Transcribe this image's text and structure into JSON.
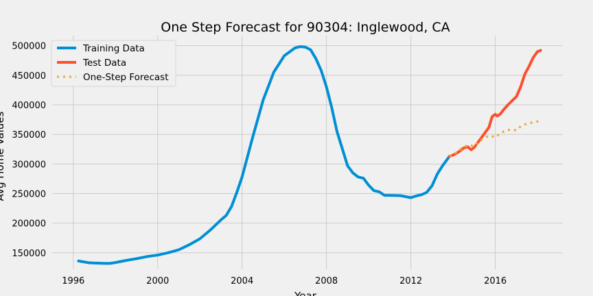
{
  "chart_data": {
    "type": "line",
    "title": "One Step Forecast for 90304: Inglewood, CA",
    "xlabel": "Year",
    "ylabel": "Avg Home Values",
    "xlim": [
      1995.0,
      2019.2
    ],
    "ylim": [
      122000,
      517000
    ],
    "xticks": [
      1996,
      2000,
      2004,
      2008,
      2012,
      2016
    ],
    "yticks": [
      150000,
      200000,
      250000,
      300000,
      350000,
      400000,
      450000,
      500000
    ],
    "grid": true,
    "legend_position": "top-left",
    "colors": {
      "background": "#f0f0f0",
      "grid": "#cbcbcb",
      "training": "#008fd5",
      "test": "#fc4f30",
      "forecast": "#e5ae38"
    },
    "series": [
      {
        "name": "Training Data",
        "style": "solid",
        "x": [
          1996.25,
          1996.5,
          1996.75,
          1997.0,
          1997.5,
          1997.75,
          1998.0,
          1998.5,
          1999.0,
          1999.5,
          2000.0,
          2000.5,
          2001.0,
          2001.5,
          2002.0,
          2002.5,
          2003.0,
          2003.25,
          2003.5,
          2003.75,
          2004.0,
          2004.5,
          2005.0,
          2005.5,
          2006.0,
          2006.5,
          2006.75,
          2007.0,
          2007.25,
          2007.5,
          2007.75,
          2008.0,
          2008.25,
          2008.5,
          2009.0,
          2009.25,
          2009.5,
          2009.75,
          2010.0,
          2010.25,
          2010.5,
          2010.75,
          2011.0,
          2011.5,
          2012.0,
          2012.25,
          2012.5,
          2012.75,
          2013.0,
          2013.25,
          2013.5,
          2013.83
        ],
        "values": [
          136000,
          134500,
          133000,
          132500,
          132000,
          132000,
          133500,
          137000,
          140000,
          143500,
          146000,
          150000,
          155000,
          163500,
          173500,
          188500,
          205500,
          213000,
          228000,
          252000,
          278000,
          345000,
          408000,
          455000,
          483000,
          496000,
          498500,
          497500,
          493000,
          478000,
          458000,
          430000,
          395000,
          355000,
          297000,
          285000,
          278000,
          276000,
          264000,
          255000,
          253000,
          247000,
          247000,
          246500,
          243000,
          246000,
          248000,
          252000,
          263000,
          283000,
          297000,
          313000
        ]
      },
      {
        "name": "Test Data",
        "style": "solid",
        "x": [
          2013.83,
          2014.0,
          2014.25,
          2014.5,
          2014.7,
          2014.85,
          2015.0,
          2015.25,
          2015.5,
          2015.7,
          2015.85,
          2016.0,
          2016.1,
          2016.25,
          2016.4,
          2016.6,
          2016.8,
          2017.0,
          2017.2,
          2017.4,
          2017.6,
          2017.8,
          2018.0,
          2018.15
        ],
        "values": [
          313000,
          315000,
          320000,
          327000,
          329000,
          324000,
          328000,
          340000,
          352000,
          362000,
          380000,
          384000,
          381000,
          385000,
          392000,
          400000,
          407000,
          414000,
          430000,
          452000,
          465000,
          480000,
          490000,
          492000
        ]
      },
      {
        "name": "One-Step Forecast",
        "style": "dotted",
        "x": [
          2013.83,
          2014.0,
          2014.25,
          2014.5,
          2014.75,
          2015.0,
          2015.25,
          2015.5,
          2015.75,
          2016.0,
          2016.25,
          2016.5,
          2016.75,
          2017.0,
          2017.25,
          2017.5,
          2017.75,
          2018.0,
          2018.15
        ],
        "values": [
          313000,
          315000,
          322000,
          329000,
          332000,
          330000,
          338000,
          345000,
          348000,
          345000,
          352000,
          357000,
          358000,
          357000,
          365000,
          368000,
          370000,
          372000,
          373000
        ]
      }
    ]
  }
}
